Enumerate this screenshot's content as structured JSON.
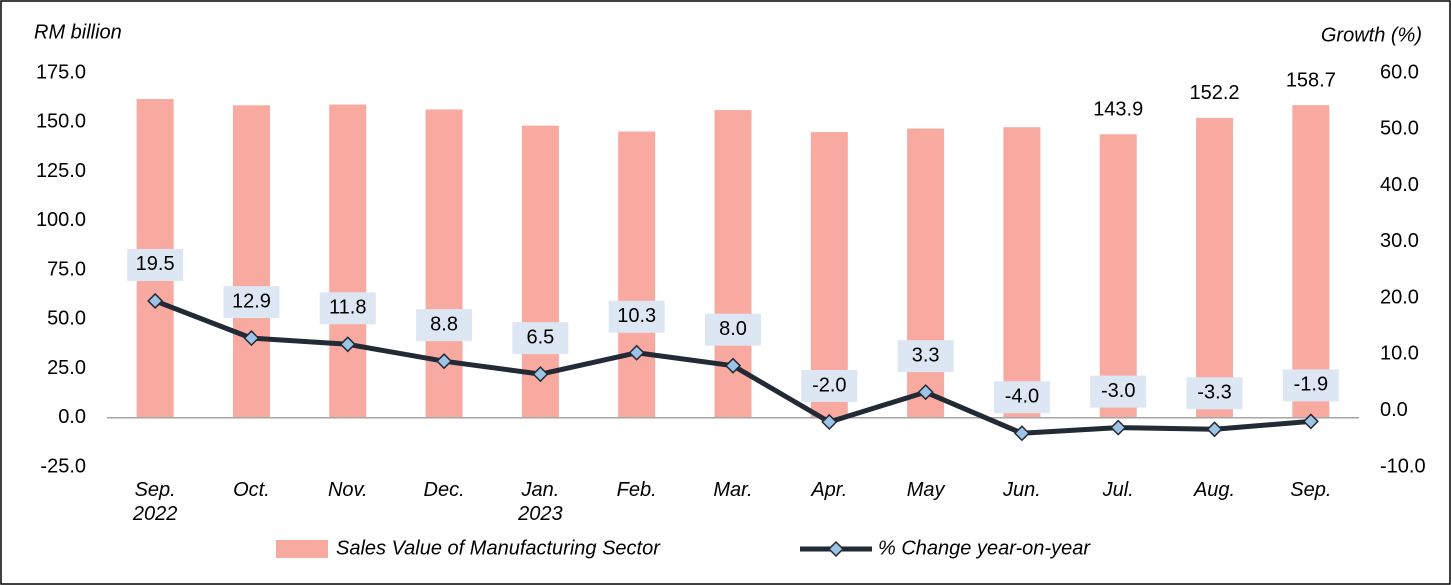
{
  "chart_data": {
    "type": "bar-line",
    "y_label": "RM billion",
    "y2_label": "Growth (%)",
    "categories": [
      "Sep. 2022",
      "Oct.",
      "Nov.",
      "Dec.",
      "Jan. 2023",
      "Feb.",
      "Mar.",
      "Apr.",
      "May",
      "Jun.",
      "Jul.",
      "Aug.",
      "Sep."
    ],
    "series": [
      {
        "name": "Sales Value of Manufacturing Sector",
        "type": "bar",
        "color": "#f8a9a0",
        "values": [
          161.8,
          158.6,
          159.0,
          156.5,
          148.3,
          145.3,
          156.2,
          145.0,
          146.8,
          147.5,
          143.9,
          152.2,
          158.7
        ],
        "value_labels": [
          null,
          null,
          null,
          null,
          null,
          null,
          null,
          null,
          null,
          null,
          "143.9",
          "152.2",
          "158.7"
        ]
      },
      {
        "name": "% Change year-on-year",
        "type": "line",
        "axis": "y2",
        "color": "#222a35",
        "marker_color": "#9dc3e6",
        "values": [
          19.5,
          12.9,
          11.8,
          8.8,
          6.5,
          10.3,
          8.0,
          -2.0,
          3.3,
          -4.0,
          -3.0,
          -3.3,
          -1.9
        ],
        "value_labels": [
          "19.5",
          "12.9",
          "11.8",
          "8.8",
          "6.5",
          "10.3",
          "8.0",
          "-2.0",
          "3.3",
          "-4.0",
          "-3.0",
          "-3.3",
          "-1.9"
        ]
      }
    ],
    "ylim": [
      -25,
      175
    ],
    "yticks": [
      {
        "value": -25,
        "label": "-25.0"
      },
      {
        "value": 0,
        "label": "0.0"
      },
      {
        "value": 25,
        "label": "25.0"
      },
      {
        "value": 50,
        "label": "50.0"
      },
      {
        "value": 75,
        "label": "75.0"
      },
      {
        "value": 100,
        "label": "100.0"
      },
      {
        "value": 125,
        "label": "125.0"
      },
      {
        "value": 150,
        "label": "150.0"
      },
      {
        "value": 175,
        "label": "175.0"
      }
    ],
    "y2lim": [
      -10,
      60
    ],
    "y2ticks": [
      {
        "value": -10,
        "label": "-10.0"
      },
      {
        "value": 0,
        "label": "0.0"
      },
      {
        "value": 10,
        "label": "10.0"
      },
      {
        "value": 20,
        "label": "20.0"
      },
      {
        "value": 30,
        "label": "30.0"
      },
      {
        "value": 40,
        "label": "40.0"
      },
      {
        "value": 50,
        "label": "50.0"
      },
      {
        "value": 60,
        "label": "60.0"
      }
    ],
    "legend": "bottom"
  }
}
